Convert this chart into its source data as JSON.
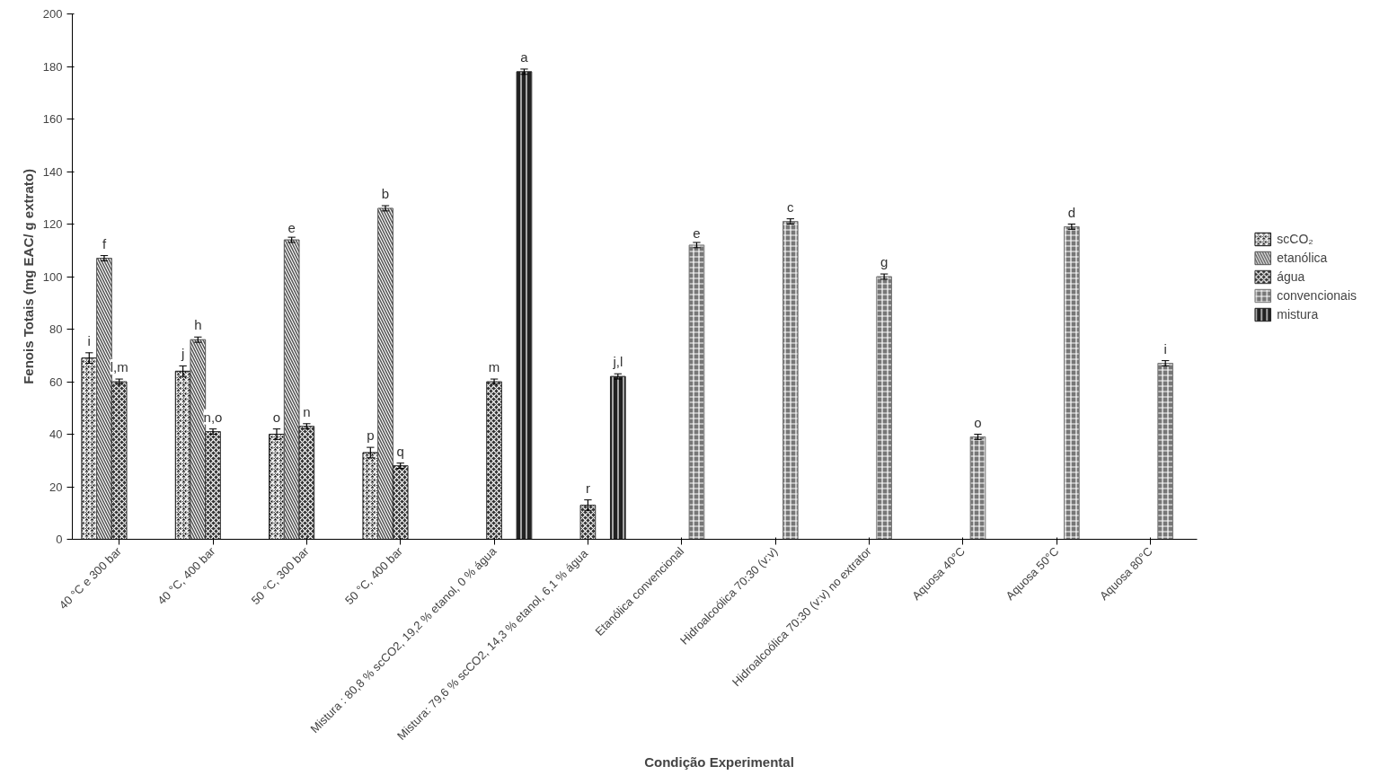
{
  "chart_data": {
    "type": "bar",
    "xlabel": "Condição Experimental",
    "ylabel": "Fenois Totais (mg EAC/ g extrato)",
    "categories": [
      "40 °C e 300 bar",
      "40 °C, 400 bar",
      "50 °C, 300 bar",
      "50 °C, 400 bar",
      "Mistura : 80,8 % scCO2, 19,2 % etanol, 0 % água",
      "Mistura: 79,6 %  scCO2, 14,3 % etanol, 6,1 % água",
      "Etanólica convencional",
      "Hidroalcoólica 70:30 (v:v)",
      "Hidroalcoólica 70:30 (v:v) no extrator",
      "Aquosa 40°C",
      "Aquosa 50°C",
      "Aquosa 80°C"
    ],
    "series": [
      {
        "name": "scCO₂",
        "color": "#111111",
        "values": [
          69,
          64,
          40,
          33,
          null,
          null,
          null,
          null,
          null,
          null,
          null,
          null
        ],
        "errors": [
          2,
          2,
          2,
          2,
          null,
          null,
          null,
          null,
          null,
          null,
          null,
          null
        ],
        "value_labels": [
          "i",
          "j",
          "o",
          "p",
          null,
          null,
          null,
          null,
          null,
          null,
          null,
          null
        ]
      },
      {
        "name": "etanólica",
        "color": "#555555",
        "values": [
          107,
          76,
          114,
          126,
          null,
          null,
          null,
          null,
          null,
          null,
          null,
          null
        ],
        "errors": [
          1,
          1,
          1,
          1,
          null,
          null,
          null,
          null,
          null,
          null,
          null,
          null
        ],
        "value_labels": [
          "f",
          "h",
          "e",
          "b",
          null,
          null,
          null,
          null,
          null,
          null,
          null,
          null
        ]
      },
      {
        "name": "água",
        "color": "#333333",
        "values": [
          60,
          41,
          43,
          28,
          60,
          13,
          null,
          null,
          null,
          null,
          null,
          null
        ],
        "errors": [
          1,
          1,
          1,
          1,
          1,
          2,
          null,
          null,
          null,
          null,
          null,
          null
        ],
        "value_labels": [
          "l,m",
          "n,o",
          "n",
          "q",
          "m",
          "r",
          null,
          null,
          null,
          null,
          null,
          null
        ]
      },
      {
        "name": "convencionais",
        "color": "#777777",
        "values": [
          null,
          null,
          null,
          null,
          null,
          null,
          112,
          121,
          100,
          39,
          119,
          67
        ],
        "errors": [
          null,
          null,
          null,
          null,
          null,
          null,
          1,
          1,
          1,
          1,
          1,
          1
        ],
        "value_labels": [
          null,
          null,
          null,
          null,
          null,
          null,
          "e",
          "c",
          "g",
          "o",
          "d",
          "i"
        ]
      },
      {
        "name": "mistura",
        "color": "#222222",
        "values": [
          null,
          null,
          null,
          null,
          178,
          62,
          null,
          null,
          null,
          null,
          null,
          null
        ],
        "errors": [
          null,
          null,
          null,
          null,
          1,
          1,
          null,
          null,
          null,
          null,
          null,
          null
        ],
        "value_labels": [
          null,
          null,
          null,
          null,
          "a",
          "j,l",
          null,
          null,
          null,
          null,
          null,
          null
        ]
      }
    ],
    "ylim": [
      0,
      200
    ],
    "yticks": [
      0,
      20,
      40,
      60,
      80,
      100,
      120,
      140,
      160,
      180,
      200
    ],
    "grid": false,
    "legend": "right"
  }
}
